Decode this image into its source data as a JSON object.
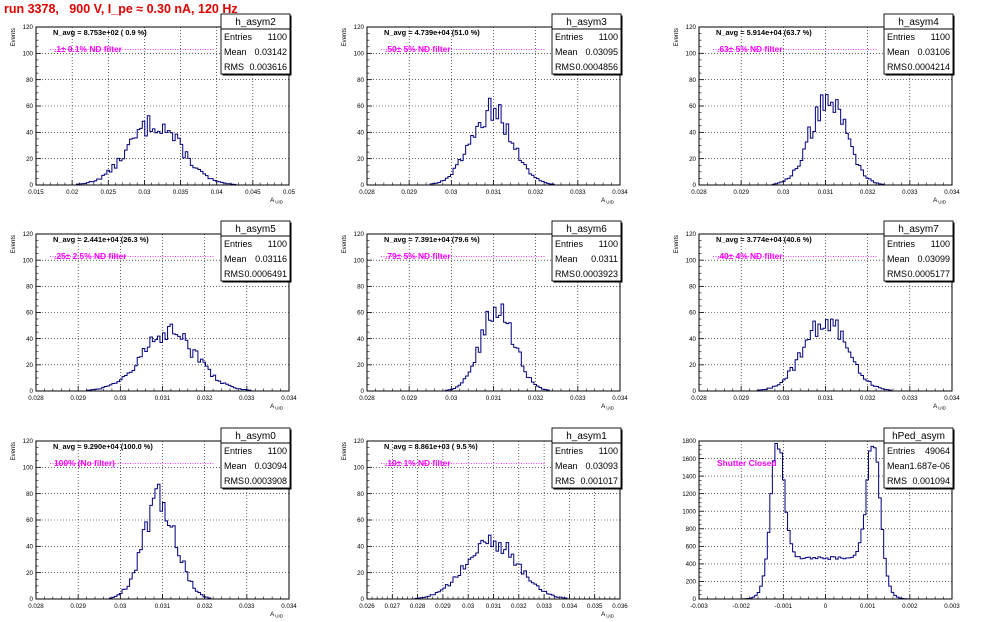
{
  "page": {
    "title": "run 3378,   900 V, I_pe ≈ 0.30 nA, 120 Hz"
  },
  "colors": {
    "title": "#e00000",
    "annotation": "#ff00ff",
    "hist_line": "#000080",
    "grid": "#000000"
  },
  "chart_data": [
    {
      "type": "histogram",
      "name": "h_asym2",
      "nav_text": "N_avg = 8.753e+02 ( 0.9 %)",
      "filter_text": ".1± 0.1% ND filter",
      "stats": {
        "entries": "1100",
        "mean": "0.03142",
        "rms": "0.003616"
      },
      "xlabel": "A_UID",
      "ylabel": "Events",
      "xlim": [
        0.015,
        0.05
      ],
      "ylim": [
        0,
        120
      ],
      "xticks": [
        "0.015",
        "0.02",
        "0.025",
        "0.03",
        "0.035",
        "0.04",
        "0.045",
        "0.05"
      ],
      "yticks": [
        "0",
        "20",
        "40",
        "60",
        "80",
        "100",
        "120"
      ],
      "grid": true,
      "mean_value": 0.03142,
      "rms_value": 0.003616,
      "peak": 48
    },
    {
      "type": "histogram",
      "name": "h_asym3",
      "nav_text": "N_avg = 4.739e+04 (51.0 %)",
      "filter_text": ".50± 5% ND filter",
      "stats": {
        "entries": "1100",
        "mean": "0.03095",
        "rms": "0.0004856"
      },
      "xlabel": "A_UID",
      "ylabel": "Events",
      "xlim": [
        0.028,
        0.034
      ],
      "ylim": [
        0,
        120
      ],
      "xticks": [
        "0.028",
        "0.029",
        "0.03",
        "0.031",
        "0.032",
        "0.033",
        "0.034"
      ],
      "yticks": [
        "0",
        "20",
        "40",
        "60",
        "80",
        "100",
        "120"
      ],
      "grid": true,
      "mean_value": 0.03095,
      "rms_value": 0.0004856,
      "peak": 58
    },
    {
      "type": "histogram",
      "name": "h_asym4",
      "nav_text": "N_avg = 5.914e+04 (63.7 %)",
      "filter_text": ".63± 5% ND filter",
      "stats": {
        "entries": "1100",
        "mean": "0.03106",
        "rms": "0.0004214"
      },
      "xlabel": "A_UID",
      "ylabel": "Events",
      "xlim": [
        0.028,
        0.034
      ],
      "ylim": [
        0,
        120
      ],
      "xticks": [
        "0.028",
        "0.029",
        "0.03",
        "0.031",
        "0.032",
        "0.033",
        "0.034"
      ],
      "yticks": [
        "0",
        "20",
        "40",
        "60",
        "80",
        "100",
        "120"
      ],
      "grid": true,
      "mean_value": 0.03106,
      "rms_value": 0.0004214,
      "peak": 68
    },
    {
      "type": "histogram",
      "name": "h_asym5",
      "nav_text": "N_avg = 2.441e+04 (26.3 %)",
      "filter_text": ".25± 2.5% ND filter",
      "stats": {
        "entries": "1100",
        "mean": "0.03116",
        "rms": "0.0006491"
      },
      "xlabel": "A_UID",
      "ylabel": "Events",
      "xlim": [
        0.028,
        0.034
      ],
      "ylim": [
        0,
        120
      ],
      "xticks": [
        "0.028",
        "0.029",
        "0.03",
        "0.031",
        "0.032",
        "0.033",
        "0.034"
      ],
      "yticks": [
        "0",
        "20",
        "40",
        "60",
        "80",
        "100",
        "120"
      ],
      "grid": true,
      "mean_value": 0.03116,
      "rms_value": 0.0006491,
      "peak": 45
    },
    {
      "type": "histogram",
      "name": "h_asym6",
      "nav_text": "N_avg = 7.391e+04 (79.6 %)",
      "filter_text": ".79± 5% ND filter",
      "stats": {
        "entries": "1100",
        "mean": "0.0311",
        "rms": "0.0003923"
      },
      "xlabel": "A_UID",
      "ylabel": "Events",
      "xlim": [
        0.028,
        0.034
      ],
      "ylim": [
        0,
        120
      ],
      "xticks": [
        "0.028",
        "0.029",
        "0.03",
        "0.031",
        "0.032",
        "0.033",
        "0.034"
      ],
      "yticks": [
        "0",
        "20",
        "40",
        "60",
        "80",
        "100",
        "120"
      ],
      "grid": true,
      "mean_value": 0.0311,
      "rms_value": 0.0003923,
      "peak": 65
    },
    {
      "type": "histogram",
      "name": "h_asym7",
      "nav_text": "N_avg = 3.774e+04 (40.6 %)",
      "filter_text": ".40± 4% ND filter",
      "stats": {
        "entries": "1100",
        "mean": "0.03099",
        "rms": "0.0005177"
      },
      "xlabel": "A_UID",
      "ylabel": "Events",
      "xlim": [
        0.028,
        0.034
      ],
      "ylim": [
        0,
        120
      ],
      "xticks": [
        "0.028",
        "0.029",
        "0.03",
        "0.031",
        "0.032",
        "0.033",
        "0.034"
      ],
      "yticks": [
        "0",
        "20",
        "40",
        "60",
        "80",
        "100",
        "120"
      ],
      "grid": true,
      "mean_value": 0.03099,
      "rms_value": 0.0005177,
      "peak": 55
    },
    {
      "type": "histogram",
      "name": "h_asym0",
      "nav_text": "N_avg = 9.290e+04 (100.0 %)",
      "filter_text": "100% (No filter)",
      "stats": {
        "entries": "1100",
        "mean": "0.03094",
        "rms": "0.0003908"
      },
      "xlabel": "A_UID",
      "ylabel": "Events",
      "xlim": [
        0.028,
        0.034
      ],
      "ylim": [
        0,
        120
      ],
      "xticks": [
        "0.028",
        "0.029",
        "0.03",
        "0.031",
        "0.032",
        "0.033",
        "0.034"
      ],
      "yticks": [
        "0",
        "20",
        "40",
        "60",
        "80",
        "100",
        "120"
      ],
      "grid": true,
      "mean_value": 0.03094,
      "rms_value": 0.0003908,
      "peak": 76
    },
    {
      "type": "histogram",
      "name": "h_asym1",
      "nav_text": "N_avg = 8.861e+03 ( 9.5 %)",
      "filter_text": ".10± 1% ND filter",
      "stats": {
        "entries": "1100",
        "mean": "0.03093",
        "rms": "0.001017"
      },
      "xlabel": "A_UID",
      "ylabel": "Events",
      "xlim": [
        0.026,
        0.036
      ],
      "ylim": [
        0,
        120
      ],
      "xticks": [
        "0.026",
        "0.027",
        "0.028",
        "0.029",
        "0.03",
        "0.031",
        "0.032",
        "0.033",
        "0.034",
        "0.035",
        "0.036"
      ],
      "yticks": [
        "0",
        "20",
        "40",
        "60",
        "80",
        "100",
        "120"
      ],
      "grid": true,
      "mean_value": 0.03093,
      "rms_value": 0.001017,
      "peak": 45
    },
    {
      "type": "histogram",
      "name": "hPed_asym",
      "nav_text": "",
      "filter_text": "Shutter Closed",
      "stats": {
        "entries": "49064",
        "mean": "1.687e-06",
        "rms": "0.001094"
      },
      "xlabel": "",
      "ylabel": "",
      "xlim": [
        -0.003,
        0.003
      ],
      "ylim": [
        0,
        1800
      ],
      "xticks": [
        "-0.003",
        "-0.002",
        "-0.001",
        "0",
        "0.001",
        "0.002",
        "0.003"
      ],
      "yticks": [
        "0",
        "200",
        "400",
        "600",
        "800",
        "1000",
        "1200",
        "1400",
        "1600",
        "1800"
      ],
      "grid": true,
      "bimodal": true,
      "peaks": [
        -0.0011,
        0.0011
      ],
      "peak": 1790
    }
  ]
}
